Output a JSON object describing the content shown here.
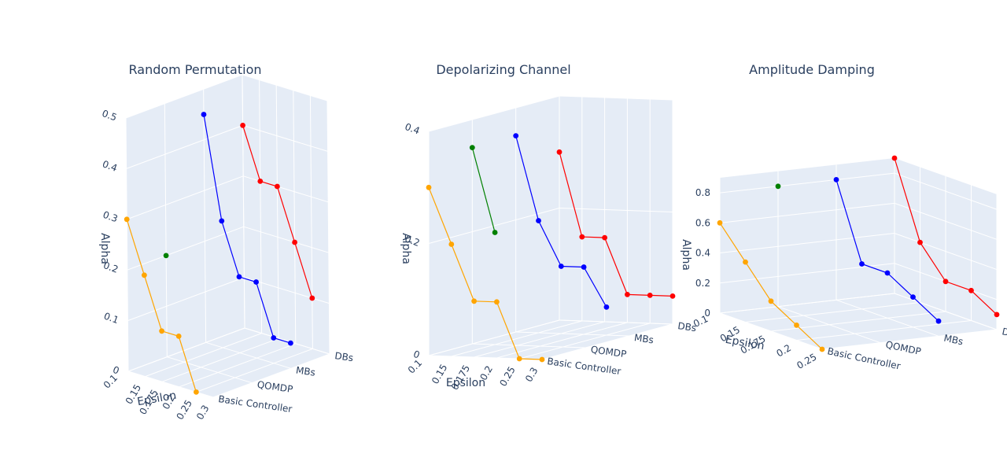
{
  "chart_data": [
    {
      "type": "scatter3d",
      "title": "Random Permutation",
      "xlabel": "Epsilon",
      "ylabel": "",
      "zlabel": "Alpha",
      "x_ticks": [
        "0.1",
        "0.15",
        "0.175",
        "0.2",
        "0.25",
        "0.3"
      ],
      "y_categories": [
        "Basic Controller",
        "QOMDP",
        "MBs",
        "DBs"
      ],
      "z_ticks": [
        "0",
        "0.1",
        "0.2",
        "0.3",
        "0.4",
        "0.5"
      ],
      "zlim": [
        0,
        0.5
      ],
      "series": [
        {
          "category": "Basic Controller",
          "color": "#ffa500",
          "x": [
            0.1,
            0.15,
            0.175,
            0.2,
            0.25
          ],
          "z": [
            0.3,
            0.2,
            0.1,
            0.1,
            0.0
          ]
        },
        {
          "category": "QOMDP",
          "color": "#008000",
          "x": [
            0.1
          ],
          "z": [
            0.2
          ]
        },
        {
          "category": "MBs",
          "color": "#0000ff",
          "x": [
            0.1,
            0.15,
            0.175,
            0.2,
            0.25,
            0.3
          ],
          "z": [
            0.45,
            0.25,
            0.15,
            0.15,
            0.05,
            0.05
          ]
        },
        {
          "category": "DBs",
          "color": "#ff0000",
          "x": [
            0.1,
            0.15,
            0.175,
            0.2,
            0.25
          ],
          "z": [
            0.4,
            0.3,
            0.3,
            0.2,
            0.1
          ]
        }
      ]
    },
    {
      "type": "scatter3d",
      "title": "Depolarizing Channel",
      "xlabel": "Epsilon",
      "ylabel": "",
      "zlabel": "Alpha",
      "x_ticks": [
        "0.1",
        "0.15",
        "0.175",
        "0.2",
        "0.25",
        "0.3"
      ],
      "y_categories": [
        "Basic Controller",
        "QOMDP",
        "MBs",
        "DBs"
      ],
      "z_ticks": [
        "0",
        "0.2",
        "0.4"
      ],
      "zlim": [
        0,
        0.4
      ],
      "series": [
        {
          "category": "Basic Controller",
          "color": "#ffa500",
          "x": [
            0.1,
            0.15,
            0.175,
            0.2,
            0.25,
            0.3
          ],
          "z": [
            0.3,
            0.2,
            0.1,
            0.1,
            0.0,
            0.0
          ]
        },
        {
          "category": "QOMDP",
          "color": "#008000",
          "x": [
            0.1,
            0.15
          ],
          "z": [
            0.35,
            0.2
          ]
        },
        {
          "category": "MBs",
          "color": "#0000ff",
          "x": [
            0.1,
            0.15,
            0.175,
            0.2,
            0.25
          ],
          "z": [
            0.35,
            0.2,
            0.12,
            0.12,
            0.05
          ]
        },
        {
          "category": "DBs",
          "color": "#ff0000",
          "x": [
            0.1,
            0.15,
            0.175,
            0.2,
            0.25,
            0.3
          ],
          "z": [
            0.3,
            0.15,
            0.15,
            0.05,
            0.05,
            0.05
          ]
        }
      ]
    },
    {
      "type": "scatter3d",
      "title": "Amplitude Damping",
      "xlabel": "Epsilon",
      "ylabel": "",
      "zlabel": "Alpha",
      "x_ticks": [
        "0.1",
        "0.15",
        "0.175",
        "0.2",
        "0.25"
      ],
      "y_categories": [
        "Basic Controller",
        "QOMDP",
        "MBs",
        "DBs"
      ],
      "z_ticks": [
        "0",
        "0.2",
        "0.4",
        "0.6",
        "0.8"
      ],
      "zlim": [
        0,
        0.9
      ],
      "series": [
        {
          "category": "Basic Controller",
          "color": "#ffa500",
          "x": [
            0.1,
            0.15,
            0.175,
            0.2,
            0.25
          ],
          "z": [
            0.6,
            0.4,
            0.2,
            0.1,
            0.0
          ]
        },
        {
          "category": "QOMDP",
          "color": "#008000",
          "x": [
            0.1
          ],
          "z": [
            0.8
          ]
        },
        {
          "category": "MBs",
          "color": "#0000ff",
          "x": [
            0.1,
            0.15,
            0.175,
            0.2,
            0.25
          ],
          "z": [
            0.8,
            0.3,
            0.3,
            0.2,
            0.1
          ]
        },
        {
          "category": "DBs",
          "color": "#ff0000",
          "x": [
            0.1,
            0.15,
            0.175,
            0.2,
            0.25
          ],
          "z": [
            0.9,
            0.4,
            0.2,
            0.2,
            0.1
          ]
        }
      ]
    }
  ],
  "colors": {
    "pane": "#e5ecf6",
    "grid": "#ffffff",
    "text": "#2a3f5f"
  }
}
